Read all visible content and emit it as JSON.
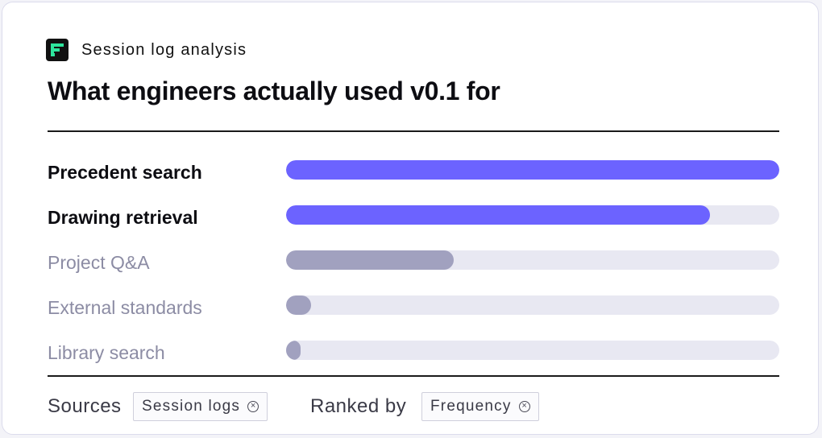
{
  "header": {
    "eyebrow": "Session log analysis",
    "logo_icon": "stacked-bars-logo",
    "title": "What engineers actually used v0.1 for"
  },
  "chart_data": {
    "type": "bar",
    "orientation": "horizontal",
    "categories": [
      "Precedent search",
      "Drawing retrieval",
      "Project Q&A",
      "External standards",
      "Library search"
    ],
    "values": [
      100,
      86,
      34,
      5,
      3
    ],
    "xlim": [
      0,
      100
    ],
    "highlighted": [
      true,
      true,
      false,
      false,
      false
    ],
    "colors": {
      "highlight": "#6c63ff",
      "muted": "#a1a1bf",
      "track": "#e8e8f2"
    }
  },
  "footer": {
    "sources_label": "Sources",
    "sources_chip": "Session logs",
    "ranked_label": "Ranked by",
    "ranked_chip": "Frequency",
    "chip_remove_icon": "close-circle-icon"
  }
}
